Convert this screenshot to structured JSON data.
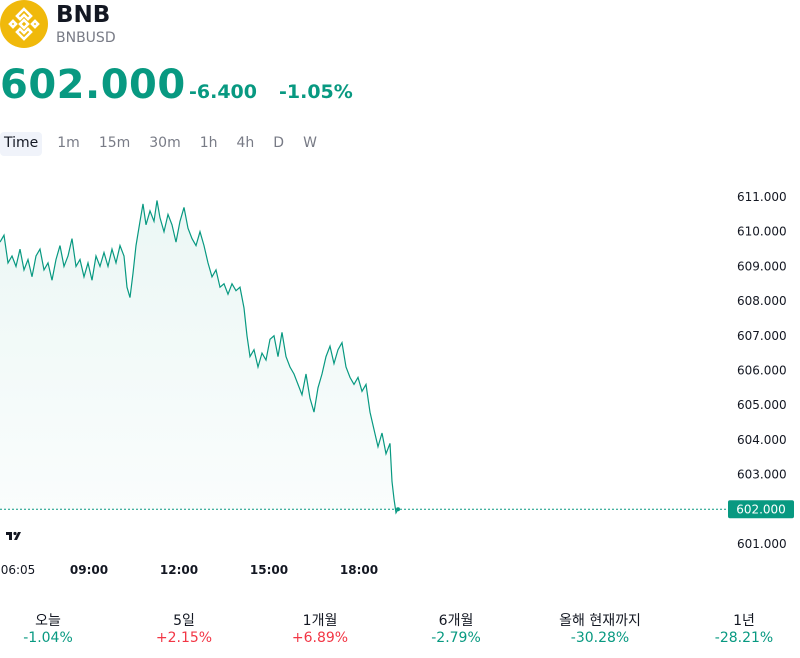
{
  "header": {
    "symbol": "BNB",
    "pair": "BNBUSD",
    "price": "602.000",
    "change": "-6.400",
    "change_pct": "-1.05%"
  },
  "colors": {
    "accent": "#089981",
    "negative": "#f23645",
    "logo": "#f0b90b"
  },
  "icons": {
    "logo": "bnb-logo",
    "watermark": "tradingview-logo"
  },
  "tabs": [
    "Time",
    "1m",
    "15m",
    "30m",
    "1h",
    "4h",
    "D",
    "W"
  ],
  "active_tab": "Time",
  "chart_data": {
    "type": "area",
    "x_ticks": [
      "06:05",
      "09:00",
      "12:00",
      "15:00",
      "18:00"
    ],
    "y_ticks": [
      "611.000",
      "610.000",
      "609.000",
      "608.000",
      "607.000",
      "606.000",
      "605.000",
      "604.000",
      "603.000",
      "602.000",
      "601.000"
    ],
    "last_label": "602.000",
    "last_value": 602.0,
    "ylim": [
      600.6,
      611.3
    ],
    "grid": false,
    "series": [
      {
        "points": [
          [
            0,
            609.7
          ],
          [
            4,
            609.9
          ],
          [
            8,
            609.1
          ],
          [
            12,
            609.3
          ],
          [
            16,
            609.0
          ],
          [
            20,
            609.5
          ],
          [
            24,
            608.9
          ],
          [
            28,
            609.2
          ],
          [
            32,
            608.7
          ],
          [
            36,
            609.3
          ],
          [
            40,
            609.5
          ],
          [
            44,
            608.9
          ],
          [
            48,
            609.1
          ],
          [
            52,
            608.6
          ],
          [
            56,
            609.2
          ],
          [
            60,
            609.6
          ],
          [
            64,
            609.0
          ],
          [
            68,
            609.3
          ],
          [
            72,
            609.8
          ],
          [
            76,
            609.0
          ],
          [
            80,
            609.2
          ],
          [
            84,
            608.7
          ],
          [
            88,
            609.1
          ],
          [
            92,
            608.6
          ],
          [
            96,
            609.3
          ],
          [
            100,
            609.0
          ],
          [
            104,
            609.4
          ],
          [
            108,
            609.0
          ],
          [
            112,
            609.5
          ],
          [
            116,
            609.1
          ],
          [
            120,
            609.6
          ],
          [
            124,
            609.3
          ],
          [
            127,
            608.4
          ],
          [
            130,
            608.1
          ],
          [
            133,
            608.8
          ],
          [
            136,
            609.6
          ],
          [
            140,
            610.3
          ],
          [
            143,
            610.8
          ],
          [
            146,
            610.2
          ],
          [
            150,
            610.6
          ],
          [
            154,
            610.3
          ],
          [
            157,
            610.9
          ],
          [
            160,
            610.4
          ],
          [
            164,
            610.0
          ],
          [
            168,
            610.5
          ],
          [
            172,
            610.2
          ],
          [
            176,
            609.7
          ],
          [
            180,
            610.3
          ],
          [
            184,
            610.7
          ],
          [
            188,
            610.1
          ],
          [
            192,
            609.8
          ],
          [
            196,
            609.6
          ],
          [
            200,
            610.0
          ],
          [
            204,
            609.6
          ],
          [
            208,
            609.1
          ],
          [
            212,
            608.7
          ],
          [
            216,
            608.9
          ],
          [
            220,
            608.4
          ],
          [
            224,
            608.5
          ],
          [
            228,
            608.2
          ],
          [
            232,
            608.5
          ],
          [
            236,
            608.3
          ],
          [
            240,
            608.4
          ],
          [
            244,
            607.8
          ],
          [
            247,
            607.0
          ],
          [
            250,
            606.4
          ],
          [
            254,
            606.6
          ],
          [
            258,
            606.1
          ],
          [
            262,
            606.5
          ],
          [
            266,
            606.3
          ],
          [
            270,
            606.9
          ],
          [
            274,
            607.0
          ],
          [
            278,
            606.4
          ],
          [
            282,
            607.1
          ],
          [
            286,
            606.4
          ],
          [
            290,
            606.1
          ],
          [
            294,
            605.9
          ],
          [
            298,
            605.6
          ],
          [
            302,
            605.3
          ],
          [
            306,
            605.9
          ],
          [
            310,
            605.2
          ],
          [
            314,
            604.8
          ],
          [
            318,
            605.5
          ],
          [
            322,
            605.9
          ],
          [
            326,
            606.4
          ],
          [
            330,
            606.7
          ],
          [
            334,
            606.2
          ],
          [
            338,
            606.6
          ],
          [
            342,
            606.8
          ],
          [
            346,
            606.1
          ],
          [
            350,
            605.8
          ],
          [
            354,
            605.6
          ],
          [
            358,
            605.8
          ],
          [
            362,
            605.4
          ],
          [
            366,
            605.6
          ],
          [
            370,
            604.8
          ],
          [
            374,
            604.3
          ],
          [
            378,
            603.8
          ],
          [
            382,
            604.2
          ],
          [
            386,
            603.6
          ],
          [
            390,
            603.9
          ],
          [
            392,
            602.8
          ],
          [
            394,
            602.3
          ],
          [
            396,
            601.9
          ],
          [
            398,
            602.0
          ]
        ]
      }
    ]
  },
  "ranges": [
    {
      "label": "오늘",
      "value": "-1.04%",
      "trend": "down"
    },
    {
      "label": "5일",
      "value": "+2.15%",
      "trend": "up"
    },
    {
      "label": "1개월",
      "value": "+6.89%",
      "trend": "up"
    },
    {
      "label": "6개월",
      "value": "-2.79%",
      "trend": "down"
    },
    {
      "label": "올해 현재까지",
      "value": "-30.28%",
      "trend": "down"
    },
    {
      "label": "1년",
      "value": "-28.21%",
      "trend": "down"
    }
  ]
}
